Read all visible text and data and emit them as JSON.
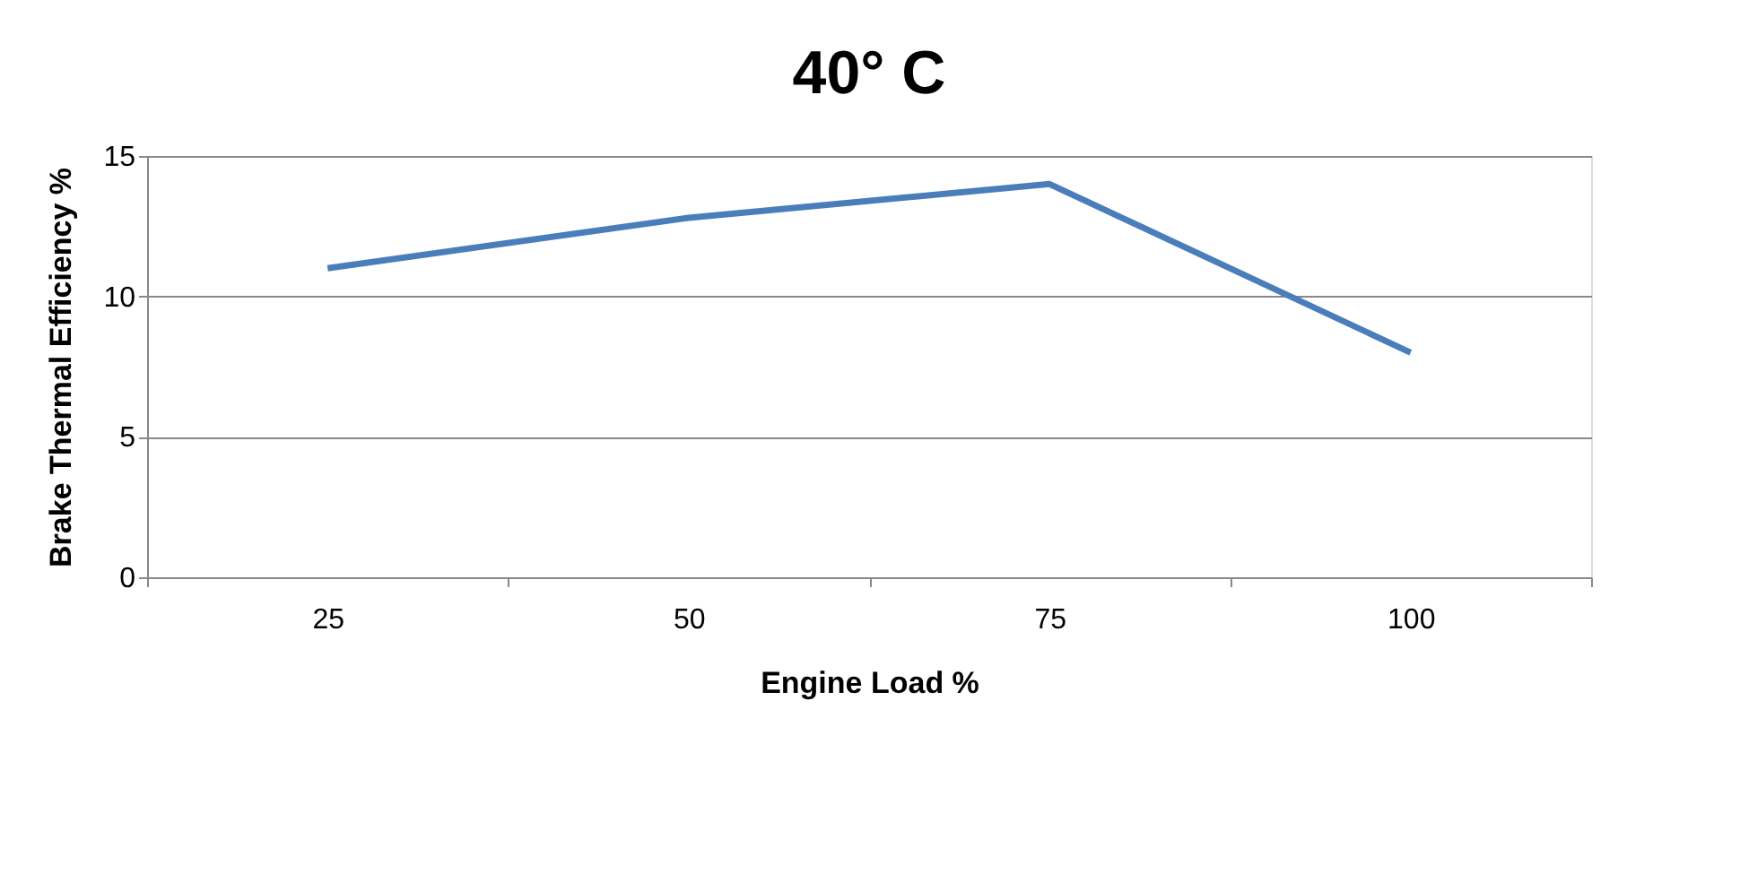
{
  "chart_data": {
    "type": "line",
    "title": "40° C",
    "xlabel": "Engine Load %",
    "ylabel": "Brake Thermal Efficiency %",
    "categories": [
      "25",
      "50",
      "75",
      "100"
    ],
    "series": [
      {
        "color": "#4a7ebb",
        "values": [
          11.0,
          12.8,
          14.0,
          8.0
        ]
      }
    ],
    "ylim": [
      0,
      15
    ],
    "yticks": [
      0,
      5,
      10,
      15
    ],
    "grid": "y",
    "legend": false,
    "marker": "none",
    "line_style": "solid"
  }
}
